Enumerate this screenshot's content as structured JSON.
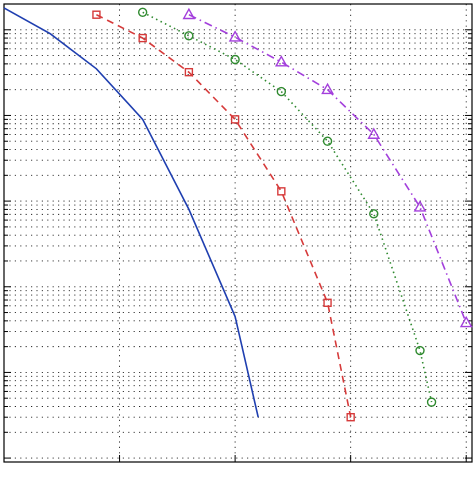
{
  "chart_data": {
    "type": "line",
    "title": "",
    "xlabel": "",
    "ylabel": "",
    "x_scale": "linear",
    "y_scale": "log",
    "xlim": [
      0.0,
      4.05
    ],
    "ylim": [
      9e-06,
      2
    ],
    "grid": true,
    "series": [
      {
        "style": "solid",
        "color": "#1f3fb0",
        "marker": "none",
        "x": [
          0.0,
          0.4,
          0.8,
          1.2,
          1.6,
          2.0,
          2.2
        ],
        "y": [
          1.8,
          0.9,
          0.35,
          0.09,
          0.008,
          0.00045,
          3e-05
        ]
      },
      {
        "style": "dashed",
        "color": "#d63a3a",
        "marker": "square",
        "x": [
          0.8,
          1.2,
          1.6,
          2.0,
          2.4,
          2.8,
          3.0
        ],
        "y": [
          1.5,
          0.8,
          0.32,
          0.09,
          0.013,
          0.00065,
          3e-05
        ]
      },
      {
        "style": "dotted",
        "color": "#2f8a2f",
        "marker": "circle",
        "x": [
          1.2,
          1.6,
          2.0,
          2.4,
          2.8,
          3.2,
          3.6,
          3.7
        ],
        "y": [
          1.6,
          0.85,
          0.45,
          0.19,
          0.05,
          0.0071,
          0.00018,
          4.5e-05
        ]
      },
      {
        "style": "dashdot",
        "color": "#a33fdc",
        "marker": "triangle",
        "x": [
          1.6,
          2.0,
          2.4,
          2.8,
          3.2,
          3.6,
          4.0
        ],
        "y": [
          1.5,
          0.82,
          0.42,
          0.2,
          0.06,
          0.0085,
          0.00038
        ]
      }
    ]
  }
}
